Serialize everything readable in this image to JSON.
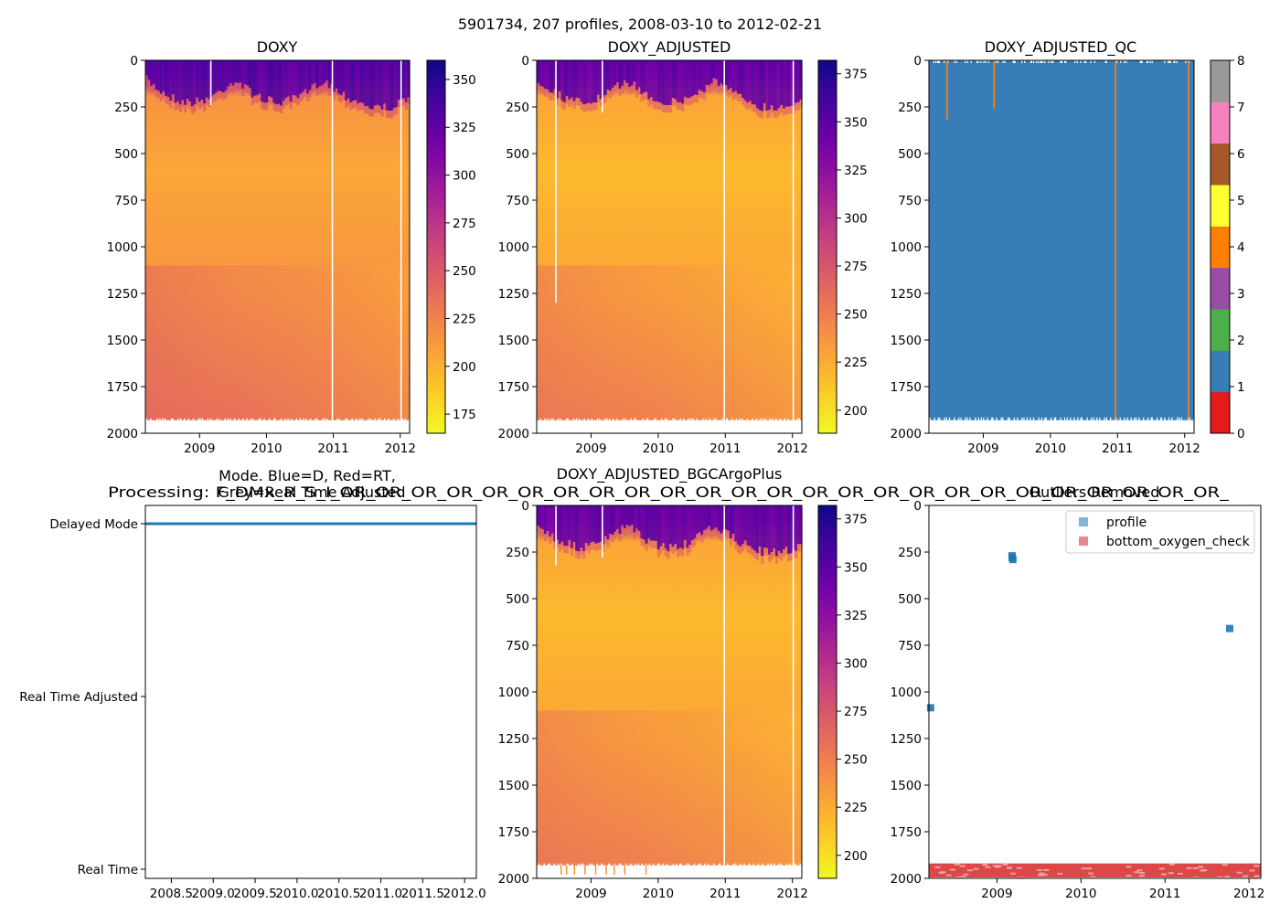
{
  "figure": {
    "suptitle": "5901734, 207 profiles, 2008-03-10 to 2012-02-21"
  },
  "colors": {
    "plasma": [
      "#0d0887",
      "#46039f",
      "#7201a8",
      "#9c179e",
      "#bd3786",
      "#d8576b",
      "#ed7953",
      "#fb9f3a",
      "#fdca26",
      "#f0f921"
    ],
    "qc_levels": [
      "#e41a1c",
      "#377eb8",
      "#4daf4a",
      "#984ea3",
      "#ff7f00",
      "#ffff33",
      "#a65628",
      "#f781bf",
      "#999999"
    ],
    "mode_line": "#1f77b4",
    "profile_marker": "#1f77b4",
    "bottom_check_marker": "#d62728"
  },
  "chart_data": [
    {
      "id": "doxy",
      "type": "heatmap",
      "title": "DOXY",
      "xticks": [
        "2009",
        "2010",
        "2011",
        "2012"
      ],
      "xrange": [
        2008.19,
        2012.14
      ],
      "ylim": [
        2000,
        0
      ],
      "yticks": [
        0,
        250,
        500,
        750,
        1000,
        1250,
        1500,
        1750,
        2000
      ],
      "colorbar": {
        "min": 165,
        "max": 360,
        "ticks": [
          175,
          200,
          225,
          250,
          275,
          300,
          325,
          350
        ]
      },
      "surface_value": 340,
      "mid_value": 205,
      "deep_value": 235
    },
    {
      "id": "doxy-adjusted",
      "type": "heatmap",
      "title": "DOXY_ADJUSTED",
      "xticks": [
        "2009",
        "2010",
        "2011",
        "2012"
      ],
      "xrange": [
        2008.19,
        2012.14
      ],
      "ylim": [
        2000,
        0
      ],
      "yticks": [
        0,
        250,
        500,
        750,
        1000,
        1250,
        1500,
        1750,
        2000
      ],
      "colorbar": {
        "min": 188,
        "max": 382,
        "ticks": [
          200,
          225,
          250,
          275,
          300,
          325,
          350,
          375
        ]
      },
      "surface_value": 355,
      "mid_value": 218,
      "deep_value": 250
    },
    {
      "id": "doxy-adjusted-qc",
      "type": "heatmap",
      "title": "DOXY_ADJUSTED_QC",
      "xticks": [
        "2009",
        "2010",
        "2011",
        "2012"
      ],
      "xrange": [
        2008.19,
        2012.14
      ],
      "ylim": [
        2000,
        0
      ],
      "yticks": [
        0,
        250,
        500,
        750,
        1000,
        1250,
        1500,
        1750,
        2000
      ],
      "colorbar": {
        "min": 0,
        "max": 8,
        "ticks": [
          0,
          1,
          2,
          3,
          4,
          5,
          6,
          7,
          8
        ]
      },
      "dominant_flag": 1,
      "flag4_profiles": [
        2008.45,
        2009.15,
        2010.96,
        2012.05
      ]
    },
    {
      "id": "mode",
      "type": "line",
      "title_lines": [
        "Mode. Blue=D, Red=RT,",
        "Grey=Real Time Adjusted"
      ],
      "overlap_text": "Processing: F_DMx_R_S_I_OR_OR_OR_OR_OR_OR_OR_OR_OR_OR_OR_OR_OR_OR_OR_OR_OR_OR_OR_OR_OR_OR_OR_OR_OR_",
      "categories": [
        "Real Time",
        "Real Time Adjusted",
        "Delayed Mode"
      ],
      "xticks": [
        "2008.5",
        "2009.0",
        "2009.5",
        "2010.0",
        "2010.5",
        "2011.0",
        "2011.5",
        "2012.0"
      ],
      "xrange": [
        2008.19,
        2012.14
      ],
      "series": [
        {
          "name": "mode",
          "x": [
            2008.19,
            2012.14
          ],
          "y": [
            2,
            2
          ]
        }
      ]
    },
    {
      "id": "bgcargoplus",
      "type": "heatmap",
      "title": "DOXY_ADJUSTED_BGCArgoPlus",
      "xticks": [
        "2009",
        "2010",
        "2011",
        "2012"
      ],
      "xrange": [
        2008.19,
        2012.14
      ],
      "ylim": [
        2000,
        0
      ],
      "yticks": [
        0,
        250,
        500,
        750,
        1000,
        1250,
        1500,
        1750,
        2000
      ],
      "colorbar": {
        "min": 188,
        "max": 382,
        "ticks": [
          200,
          225,
          250,
          275,
          300,
          325,
          350,
          375
        ]
      },
      "surface_value": 355,
      "mid_value": 218,
      "deep_value": 250
    },
    {
      "id": "outliers",
      "type": "scatter",
      "title": "Outliers Removed",
      "xticks": [
        "2009",
        "2010",
        "2011",
        "2012"
      ],
      "xrange": [
        2008.19,
        2012.14
      ],
      "ylim": [
        2000,
        0
      ],
      "yticks": [
        0,
        250,
        500,
        750,
        1000,
        1250,
        1500,
        1750,
        2000
      ],
      "legend": [
        "profile",
        "bottom_oxygen_check"
      ],
      "legend_position": "top-right",
      "series": [
        {
          "name": "profile",
          "points": [
            [
              2008.21,
              1085
            ],
            [
              2009.18,
              270
            ],
            [
              2009.18,
              280
            ],
            [
              2009.19,
              290
            ],
            [
              2011.77,
              660
            ]
          ]
        },
        {
          "name": "bottom_oxygen_check",
          "depth_band": [
            1920,
            1995
          ]
        }
      ]
    }
  ]
}
